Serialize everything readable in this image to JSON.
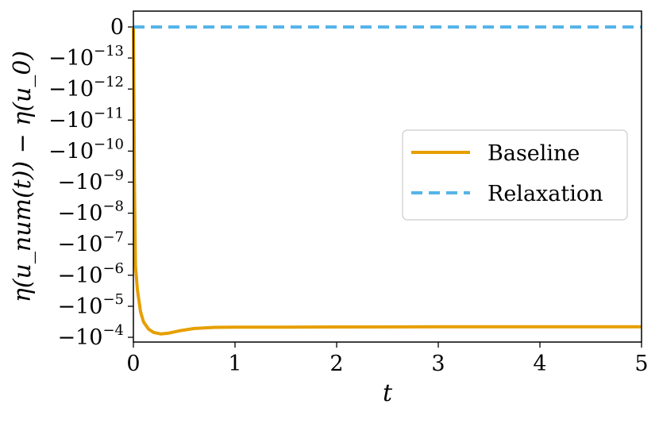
{
  "chart_data": {
    "type": "line",
    "xlabel": "t",
    "ylabel": "η(u_num(t)) − η(u_0)",
    "xlim": [
      0,
      5
    ],
    "x_ticks": [
      "0",
      "1",
      "2",
      "3",
      "4",
      "5"
    ],
    "y_scale": "symlog (negative)",
    "y_ticks": [
      {
        "base": "0",
        "exp": ""
      },
      {
        "base": "−10",
        "exp": "−13"
      },
      {
        "base": "−10",
        "exp": "−12"
      },
      {
        "base": "−10",
        "exp": "−11"
      },
      {
        "base": "−10",
        "exp": "−10"
      },
      {
        "base": "−10",
        "exp": "−9"
      },
      {
        "base": "−10",
        "exp": "−8"
      },
      {
        "base": "−10",
        "exp": "−7"
      },
      {
        "base": "−10",
        "exp": "−6"
      },
      {
        "base": "−10",
        "exp": "−5"
      },
      {
        "base": "−10",
        "exp": "−4"
      }
    ],
    "grid": false,
    "legend_position": "center-right",
    "series": [
      {
        "name": "Baseline",
        "color": "#E69F00",
        "style": "solid",
        "x": [
          0,
          0.005,
          0.01,
          0.02,
          0.04,
          0.07,
          0.1,
          0.15,
          0.2,
          0.27,
          0.35,
          0.45,
          0.6,
          0.8,
          1.0,
          1.5,
          2.0,
          3.0,
          4.0,
          5.0
        ],
        "y": [
          0,
          -1e-12,
          -1e-09,
          -5e-07,
          -3e-06,
          -1.5e-05,
          -3.2e-05,
          -5.5e-05,
          -7e-05,
          -7.8e-05,
          -7.3e-05,
          -6.2e-05,
          -5.2e-05,
          -4.8e-05,
          -4.7e-05,
          -4.7e-05,
          -4.65e-05,
          -4.6e-05,
          -4.6e-05,
          -4.6e-05
        ]
      },
      {
        "name": "Relaxation",
        "color": "#56B4E9",
        "style": "dashed",
        "x": [
          0,
          5
        ],
        "y": [
          0,
          0
        ]
      }
    ]
  }
}
